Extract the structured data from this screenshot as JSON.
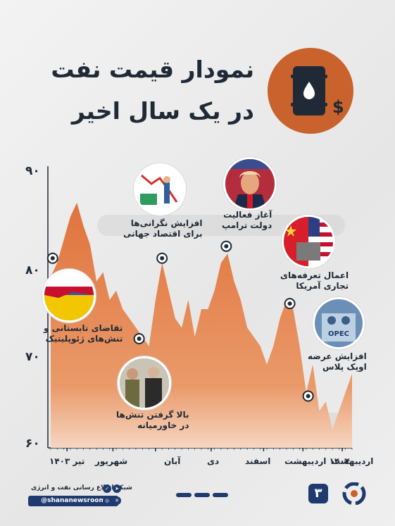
{
  "title": {
    "line1": "نمودار قیمت نفت",
    "line2": "در یک سال اخیر"
  },
  "icons": {
    "barrel": "oil-barrel-icon",
    "dollar": "dollar-sign-icon",
    "drop": "oil-drop-icon"
  },
  "colors": {
    "accent": "#c9622c",
    "area_top": "#e0733c",
    "area_bottom": "#f6d6c2",
    "text": "#1f2a36",
    "brand_blue": "#1f3a6e"
  },
  "chart_data": {
    "type": "area",
    "title": "نمودار قیمت نفت در یک سال اخیر",
    "xlabel": "",
    "ylabel": "",
    "ylim": [
      60,
      90
    ],
    "yticks": [
      {
        "value": 90,
        "label": "۹۰"
      },
      {
        "value": 80,
        "label": "۸۰"
      },
      {
        "value": 70,
        "label": "۷۰"
      },
      {
        "value": 60,
        "label": "۶۰"
      }
    ],
    "xlim": [
      0,
      46
    ],
    "months": [
      {
        "x": 2.5,
        "label": "تیر ۱۴۰۳"
      },
      {
        "x": 9.5,
        "label": "شهریور"
      },
      {
        "x": 16,
        "label": "آبان"
      },
      {
        "x": 24.5,
        "label": "دی"
      },
      {
        "x": 32.5,
        "label": "اسفند"
      },
      {
        "x": 38.5,
        "label": "۱۴۰۴ اردیبهشت"
      },
      {
        "x": 44.5,
        "label": "اردیبهشت"
      }
    ],
    "x": [
      0,
      1,
      2,
      3,
      4,
      5,
      6,
      7,
      8,
      9,
      10,
      11,
      12,
      13,
      14,
      15,
      16,
      17,
      18,
      19,
      20,
      21,
      22,
      23,
      24,
      25,
      26,
      27,
      28,
      29,
      30,
      31,
      32,
      33,
      34,
      35,
      36,
      37,
      38,
      39,
      40,
      41,
      42,
      43,
      44,
      45,
      46
    ],
    "values": [
      78.5,
      80,
      82.5,
      85,
      86.5,
      84,
      82,
      78,
      79,
      76,
      77,
      75,
      74,
      73,
      72,
      71,
      76,
      80,
      77,
      74,
      73,
      76,
      72,
      75,
      75,
      77,
      80,
      81,
      78,
      76,
      73,
      72,
      71,
      69,
      71,
      74,
      76,
      75,
      71,
      66,
      69,
      64,
      65,
      62,
      64,
      66,
      68
    ],
    "annotations": [
      {
        "x": 0.3,
        "y": 80.5,
        "text1": "تقاضای تابستانی و",
        "text2": "تنش‌های ژئوپلیتیک"
      },
      {
        "x": 13.5,
        "y": 71.8,
        "text1": "بالا گرفتن تنش‌ها",
        "text2": "در خاورمیانه"
      },
      {
        "x": 17.0,
        "y": 80.5,
        "text1": "افزایش نگرانی‌ها",
        "text2": "برای اقتصاد جهانی"
      },
      {
        "x": 26.8,
        "y": 81.8,
        "text1": "آغاز فعالیت",
        "text2": "دولت ترامپ"
      },
      {
        "x": 36.5,
        "y": 75.6,
        "text1": "اعمال تعرفه‌های",
        "text2": "تجاری آمریکا"
      },
      {
        "x": 39.3,
        "y": 65.6,
        "text1": "افزایش عرضه",
        "text2": "اوپک پلاس"
      }
    ]
  },
  "photos": [
    {
      "label": "flag-photo"
    },
    {
      "label": "soldiers-photo"
    },
    {
      "label": "market-photo"
    },
    {
      "label": "trump-photo"
    },
    {
      "label": "tariff-flags-photo"
    },
    {
      "label": "opec-photo"
    }
  ],
  "footer": {
    "network_name": "شبکه اطلاع رسانی نفت و انرژی",
    "handle": "@shananewsroom",
    "page_number": "۳"
  }
}
